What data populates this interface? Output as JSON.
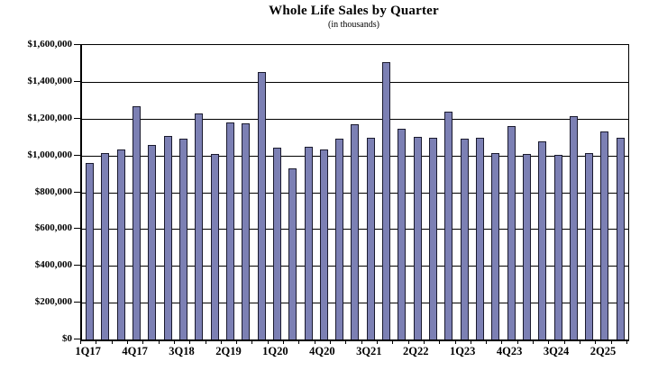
{
  "chart_data": {
    "type": "bar",
    "title": "Whole Life Sales by Quarter",
    "subtitle": "(in thousands)",
    "categories": [
      "1Q17",
      "2Q17",
      "3Q17",
      "4Q17",
      "1Q18",
      "2Q18",
      "3Q18",
      "4Q18",
      "1Q19",
      "2Q19",
      "3Q19",
      "4Q19",
      "1Q20",
      "2Q20",
      "3Q20",
      "4Q20",
      "1Q21",
      "2Q21",
      "3Q21",
      "4Q21",
      "1Q22",
      "2Q22",
      "3Q22",
      "4Q22",
      "1Q23",
      "2Q23",
      "3Q23",
      "4Q23",
      "1Q24",
      "2Q24",
      "3Q24",
      "4Q24",
      "1Q25",
      "2Q25",
      "3Q25"
    ],
    "values": [
      958000,
      1013000,
      1034000,
      1268000,
      1056000,
      1104000,
      1093000,
      1226000,
      1006000,
      1177000,
      1172000,
      1455000,
      1040000,
      932000,
      1049000,
      1033000,
      1089000,
      1170000,
      1097000,
      1505000,
      1143000,
      1100000,
      1097000,
      1237000,
      1090000,
      1094000,
      1015000,
      1158000,
      1010000,
      1075000,
      1004000,
      1212000,
      1012000,
      1131000,
      1096000
    ],
    "xlabel": "",
    "ylabel": "",
    "ylim": [
      0,
      1600000
    ],
    "y_tick_step": 200000,
    "y_tick_labels": [
      "$0",
      "$200,000",
      "$400,000",
      "$600,000",
      "$800,000",
      "$1,000,000",
      "$1,200,000",
      "$1,400,000",
      "$1,600,000"
    ],
    "x_tick_label_every": 3,
    "grid": "horizontal",
    "legend": "none",
    "bar_fill": "#7C80B4",
    "bar_border": "#1A1A2E"
  }
}
